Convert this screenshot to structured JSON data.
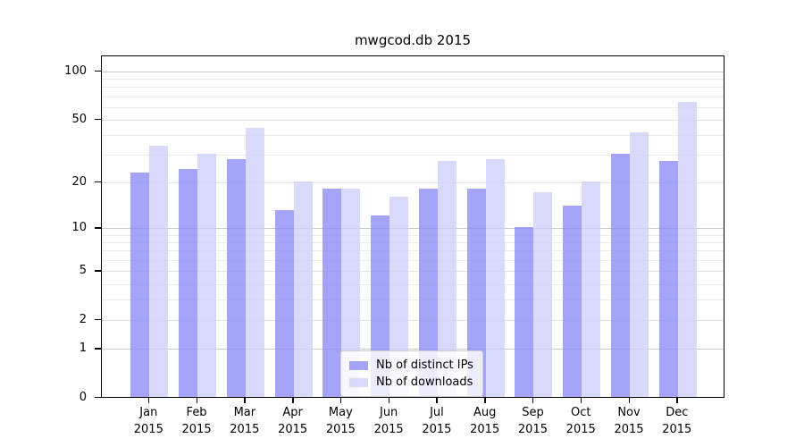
{
  "title": "mwgcod.db 2015",
  "chart_data": {
    "type": "bar",
    "title": "mwgcod.db 2015",
    "categories": [
      "Jan 2015",
      "Feb 2015",
      "Mar 2015",
      "Apr 2015",
      "May 2015",
      "Jun 2015",
      "Jul 2015",
      "Aug 2015",
      "Sep 2015",
      "Oct 2015",
      "Nov 2015",
      "Dec 2015"
    ],
    "series": [
      {
        "name": "Nb of distinct IPs",
        "color": "#8d8df7",
        "alpha": 0.8,
        "values": [
          23,
          24,
          28,
          13,
          18,
          12,
          18,
          18,
          10,
          14,
          30,
          27
        ]
      },
      {
        "name": "Nb of downloads",
        "color": "#d0d0f7",
        "alpha": 0.8,
        "values": [
          34,
          30,
          44,
          20,
          18,
          16,
          27,
          28,
          17,
          20,
          41,
          64
        ]
      }
    ],
    "xlabel": "",
    "ylabel": "",
    "y_axis": {
      "scale": "log10(y+1)",
      "tick_labels": [
        "100",
        "50",
        "20",
        "10",
        "5",
        "2",
        "1",
        "0"
      ],
      "ticks": [
        100,
        50,
        20,
        10,
        5,
        2,
        1,
        0
      ],
      "minor_ticks": [
        3,
        4,
        6,
        7,
        8,
        9,
        30,
        40,
        60,
        70,
        80,
        90
      ],
      "ylim": [
        0,
        124
      ]
    },
    "grid": true,
    "legend_position": "lower center"
  }
}
